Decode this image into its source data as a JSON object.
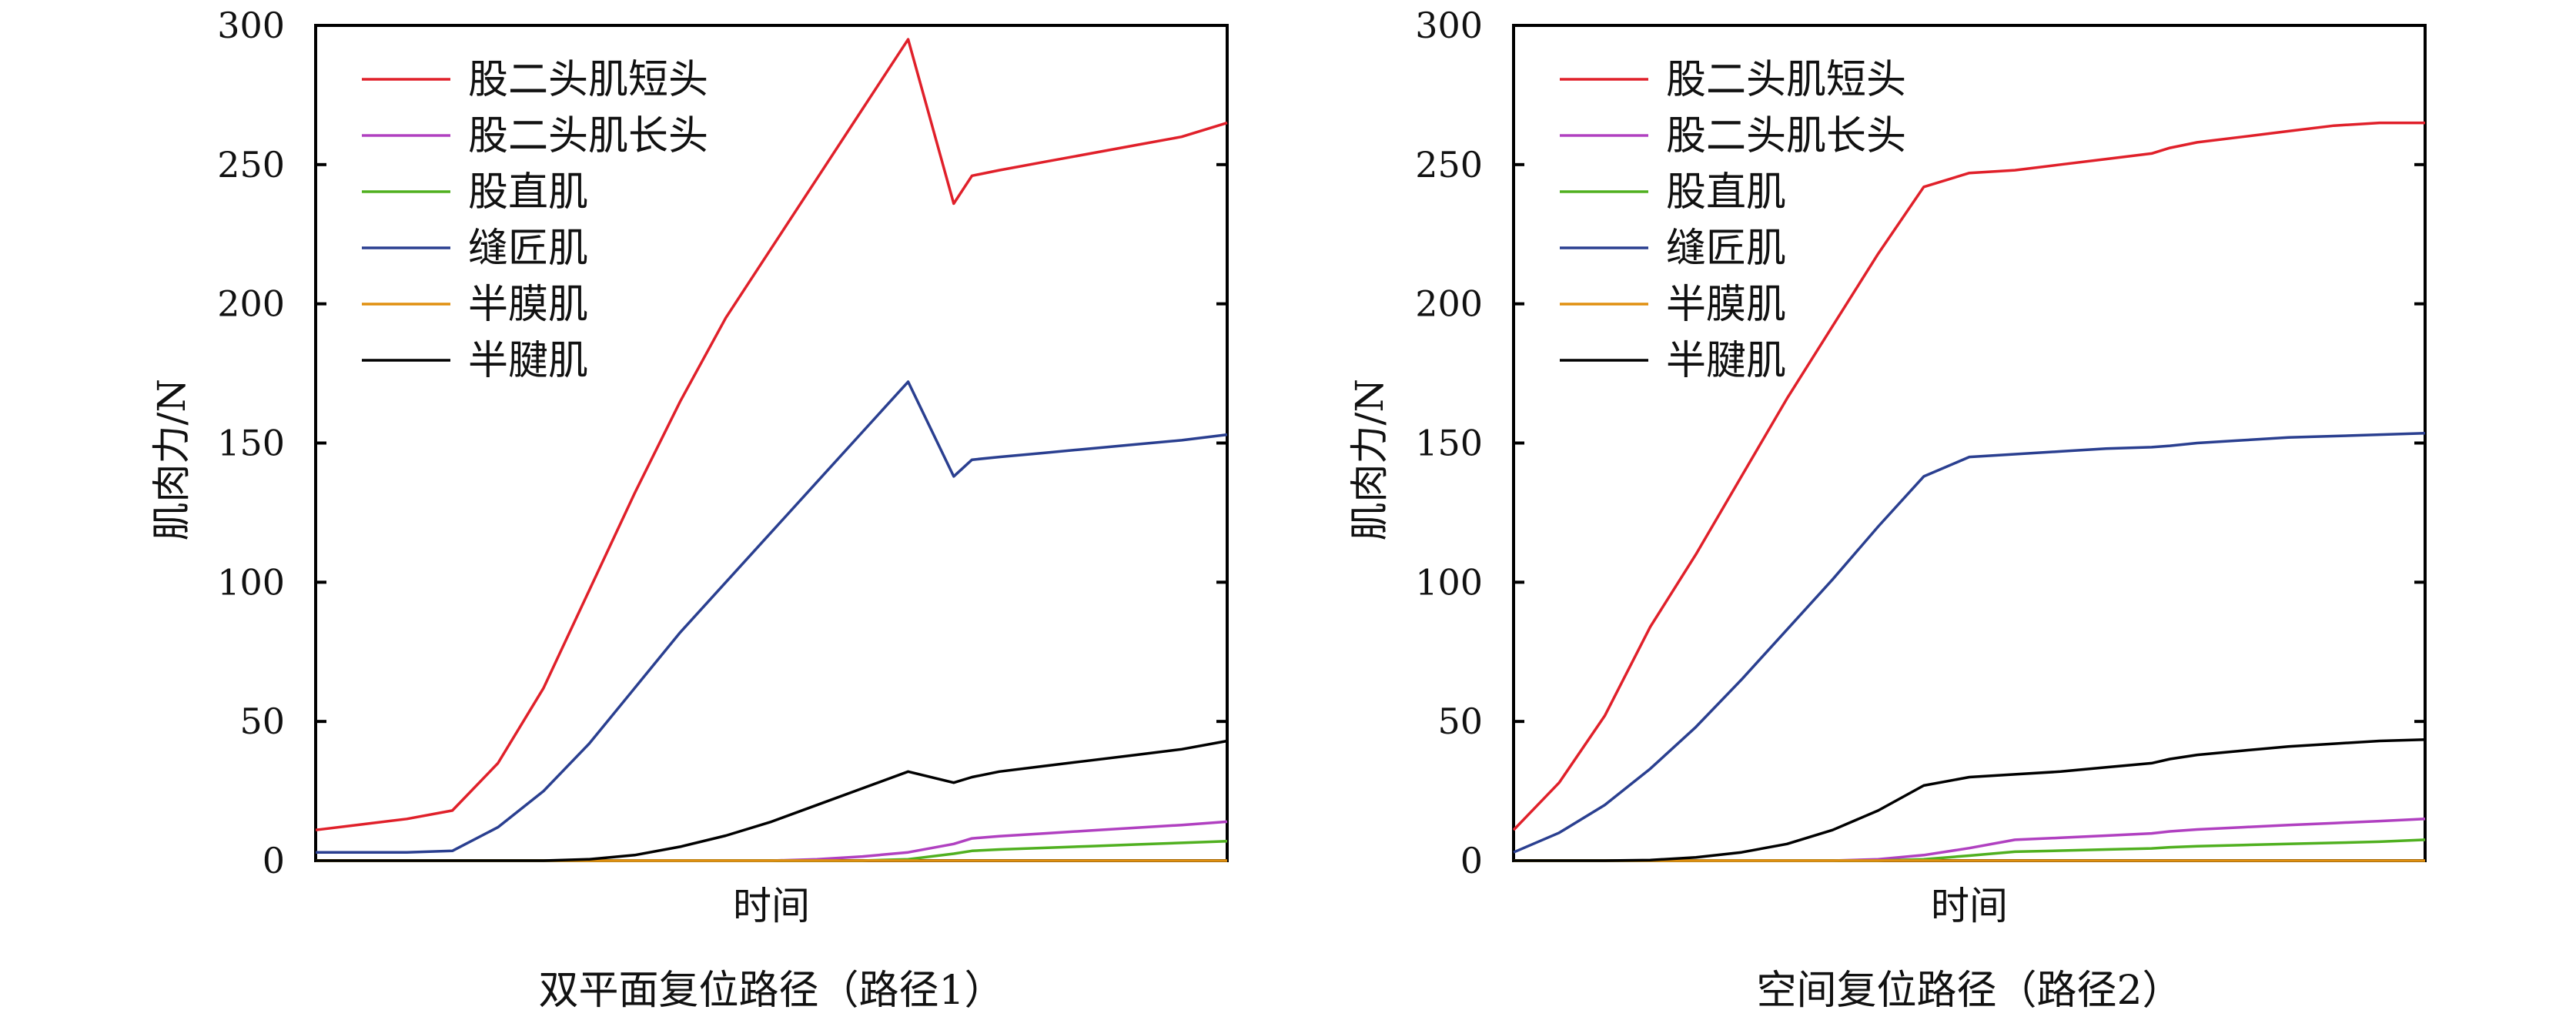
{
  "chart_data": [
    {
      "type": "line",
      "caption": "双平面复位路径（路径1）",
      "xlabel": "时间",
      "ylabel": "肌肉力/N",
      "ylim": [
        0,
        300
      ],
      "yticks": [
        0,
        50,
        100,
        150,
        200,
        250,
        300
      ],
      "x": [
        0,
        0.05,
        0.1,
        0.15,
        0.2,
        0.25,
        0.3,
        0.35,
        0.4,
        0.45,
        0.5,
        0.55,
        0.6,
        0.65,
        0.7,
        0.72,
        0.75,
        0.8,
        0.85,
        0.9,
        0.95,
        1.0
      ],
      "series": [
        {
          "name": "股二头肌短头",
          "color": "#e0202a",
          "values": [
            11,
            13,
            15,
            18,
            35,
            62,
            97,
            132,
            165,
            195,
            220,
            245,
            270,
            295,
            236,
            246,
            248,
            251,
            254,
            257,
            260,
            265
          ]
        },
        {
          "name": "股二头肌长头",
          "color": "#b040c0",
          "values": [
            0,
            0,
            0,
            0,
            0,
            0,
            0,
            0,
            0,
            0,
            0,
            0.5,
            1.5,
            3,
            6,
            8,
            8.8,
            9.8,
            10.8,
            11.8,
            12.8,
            14
          ]
        },
        {
          "name": "股直肌",
          "color": "#50b020",
          "values": [
            0,
            0,
            0,
            0,
            0,
            0,
            0,
            0,
            0,
            0,
            0,
            0,
            0,
            0.5,
            2.5,
            3.5,
            4,
            4.6,
            5.2,
            5.8,
            6.4,
            7
          ]
        },
        {
          "name": "缝匠肌",
          "color": "#2a3f90",
          "values": [
            3,
            3,
            3,
            3.5,
            12,
            25,
            42,
            62,
            82,
            100,
            118,
            136,
            154,
            172,
            138,
            144,
            145,
            146.5,
            148,
            149.5,
            151,
            153
          ]
        },
        {
          "name": "半膜肌",
          "color": "#e09010",
          "values": [
            0,
            0,
            0,
            0,
            0,
            0,
            0,
            0,
            0,
            0,
            0,
            0,
            0,
            0,
            0,
            0,
            0,
            0,
            0,
            0,
            0,
            0
          ]
        },
        {
          "name": "半腱肌",
          "color": "#000000",
          "values": [
            0,
            0,
            0,
            0,
            0,
            0,
            0.5,
            2,
            5,
            9,
            14,
            20,
            26,
            32,
            28,
            30,
            32,
            34,
            36,
            38,
            40,
            43
          ]
        }
      ]
    },
    {
      "type": "line",
      "caption": "空间复位路径（路径2）",
      "xlabel": "时间",
      "ylabel": "肌肉力/N",
      "ylim": [
        0,
        300
      ],
      "yticks": [
        0,
        50,
        100,
        150,
        200,
        250,
        300
      ],
      "x": [
        0,
        0.05,
        0.1,
        0.15,
        0.2,
        0.25,
        0.3,
        0.35,
        0.4,
        0.45,
        0.5,
        0.55,
        0.6,
        0.65,
        0.7,
        0.72,
        0.75,
        0.8,
        0.85,
        0.9,
        0.95,
        1.0
      ],
      "series": [
        {
          "name": "股二头肌短头",
          "color": "#e0202a",
          "values": [
            11,
            28,
            52,
            84,
            110,
            138,
            166,
            192,
            218,
            242,
            247,
            248,
            250,
            252,
            254,
            256,
            258,
            260,
            262,
            264,
            265,
            265
          ]
        },
        {
          "name": "股二头肌长头",
          "color": "#b040c0",
          "values": [
            0,
            0,
            0,
            0,
            0,
            0,
            0,
            0,
            0.5,
            2,
            4.5,
            7.5,
            8.2,
            9,
            9.8,
            10.5,
            11.2,
            12,
            12.8,
            13.5,
            14.2,
            15
          ]
        },
        {
          "name": "股直肌",
          "color": "#50b020",
          "values": [
            0,
            0,
            0,
            0,
            0,
            0,
            0,
            0,
            0,
            0.5,
            1.8,
            3.2,
            3.6,
            4,
            4.4,
            4.8,
            5.2,
            5.6,
            6,
            6.4,
            6.8,
            7.5
          ]
        },
        {
          "name": "缝匠肌",
          "color": "#2a3f90",
          "values": [
            3,
            10,
            20,
            33,
            48,
            65,
            83,
            101,
            120,
            138,
            145,
            146,
            147,
            148,
            148.5,
            149,
            150,
            151,
            152,
            152.5,
            153,
            153.5
          ]
        },
        {
          "name": "半膜肌",
          "color": "#e09010",
          "values": [
            0,
            0,
            0,
            0,
            0,
            0,
            0,
            0,
            0,
            0,
            0,
            0,
            0,
            0,
            0,
            0,
            0,
            0,
            0,
            0,
            0,
            0
          ]
        },
        {
          "name": "半腱肌",
          "color": "#000000",
          "values": [
            0,
            0,
            0,
            0.2,
            1.2,
            3,
            6,
            11,
            18,
            27,
            30,
            31,
            32,
            33.5,
            35,
            36.5,
            38,
            39.5,
            41,
            42,
            43,
            43.5
          ]
        }
      ]
    }
  ]
}
